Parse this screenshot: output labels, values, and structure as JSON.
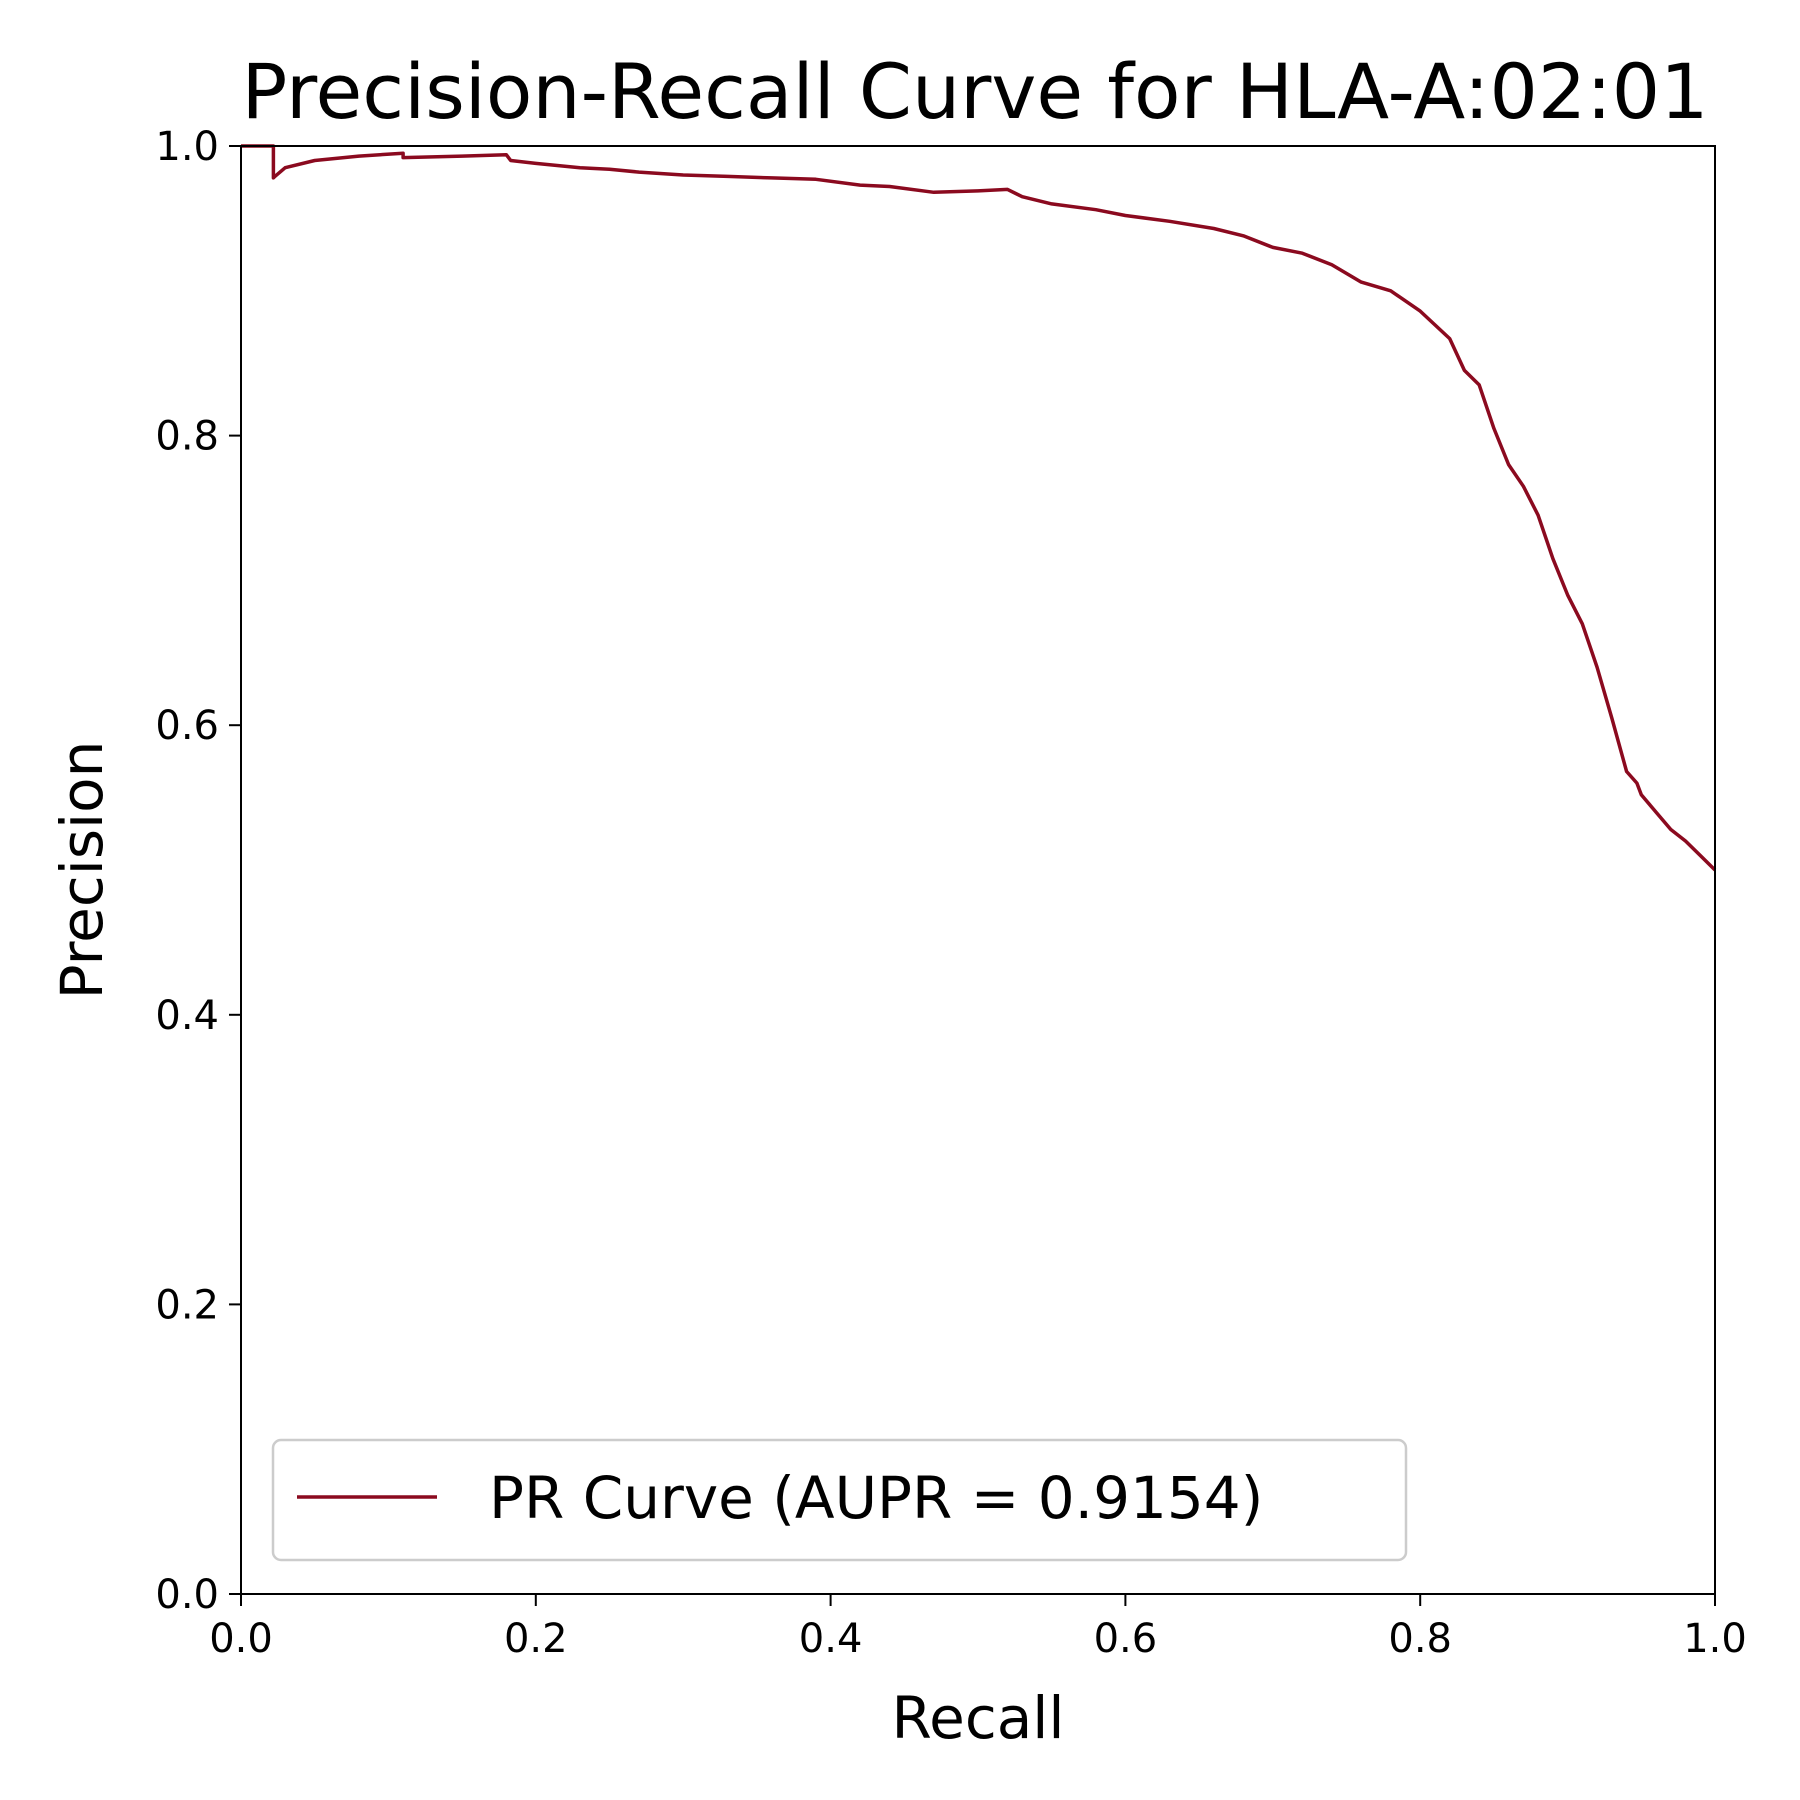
{
  "chart_data": {
    "type": "line",
    "title": "Precision-Recall Curve for HLA-A:02:01",
    "xlabel": "Recall",
    "ylabel": "Precision",
    "xlim": [
      0.0,
      1.0
    ],
    "ylim": [
      0.0,
      1.0
    ],
    "xticks": [
      "0.0",
      "0.2",
      "0.4",
      "0.6",
      "0.8",
      "1.0"
    ],
    "yticks": [
      "0.0",
      "0.2",
      "0.4",
      "0.6",
      "0.8",
      "1.0"
    ],
    "grid": false,
    "legend_position": "lower-left",
    "series": [
      {
        "name": "PR Curve (AUPR = 0.9154)",
        "color": "#8b0a1f",
        "x": [
          0.0,
          0.022,
          0.022,
          0.023,
          0.03,
          0.05,
          0.08,
          0.11,
          0.11,
          0.15,
          0.18,
          0.183,
          0.2,
          0.23,
          0.25,
          0.27,
          0.3,
          0.33,
          0.36,
          0.39,
          0.42,
          0.44,
          0.47,
          0.5,
          0.52,
          0.53,
          0.55,
          0.58,
          0.6,
          0.63,
          0.66,
          0.68,
          0.7,
          0.72,
          0.74,
          0.76,
          0.78,
          0.8,
          0.82,
          0.83,
          0.84,
          0.85,
          0.86,
          0.87,
          0.88,
          0.89,
          0.9,
          0.91,
          0.92,
          0.93,
          0.94,
          0.947,
          0.95,
          0.96,
          0.97,
          0.98,
          0.99,
          1.0
        ],
        "y": [
          1.0,
          1.0,
          0.978,
          0.979,
          0.985,
          0.99,
          0.993,
          0.995,
          0.992,
          0.993,
          0.994,
          0.99,
          0.988,
          0.985,
          0.984,
          0.982,
          0.98,
          0.979,
          0.978,
          0.977,
          0.973,
          0.972,
          0.968,
          0.969,
          0.97,
          0.965,
          0.96,
          0.956,
          0.952,
          0.948,
          0.943,
          0.938,
          0.93,
          0.926,
          0.918,
          0.906,
          0.9,
          0.886,
          0.867,
          0.845,
          0.835,
          0.805,
          0.78,
          0.765,
          0.745,
          0.715,
          0.69,
          0.67,
          0.64,
          0.605,
          0.568,
          0.56,
          0.552,
          0.54,
          0.528,
          0.52,
          0.51,
          0.5
        ]
      }
    ]
  }
}
